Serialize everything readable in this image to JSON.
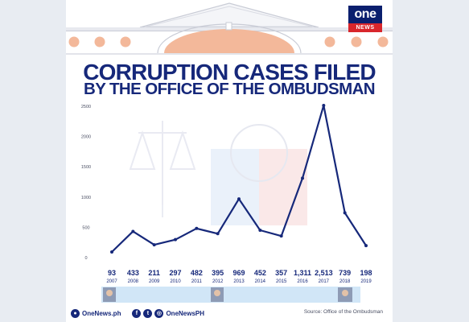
{
  "brand": {
    "logo_top": "one",
    "logo_bottom": "NEWS",
    "navy": "#16287a",
    "red": "#d8262c",
    "accent_peach": "#f3b89a"
  },
  "header": {
    "title": "CORRUPTION CASES FILED",
    "subtitle": "BY THE OFFICE OF THE OMBUDSMAN"
  },
  "chart_data": {
    "type": "line",
    "title": "CORRUPTION CASES FILED BY THE OFFICE OF THE OMBUDSMAN",
    "xlabel": "",
    "ylabel": "",
    "ylim": [
      0,
      2500
    ],
    "yticks": [
      "2500",
      "2000",
      "1500",
      "1000",
      "500",
      "0"
    ],
    "x": [
      "2007",
      "2008",
      "2009",
      "2010",
      "2011",
      "2012",
      "2013",
      "2014",
      "2015",
      "2016",
      "2017",
      "2018",
      "2019"
    ],
    "values": [
      93,
      433,
      211,
      297,
      482,
      395,
      969,
      452,
      357,
      1311,
      2513,
      739,
      198
    ],
    "value_labels": [
      "93",
      "433",
      "211",
      "297",
      "482",
      "395",
      "969",
      "452",
      "357",
      "1,311",
      "2,513",
      "739",
      "198"
    ],
    "grid": false,
    "line_color": "#16287a"
  },
  "footer": {
    "website": "OneNews.ph",
    "social_handle": "OneNewsPH",
    "source": "Source: Office of the Ombudsman",
    "icons": [
      "globe-icon",
      "facebook-icon",
      "twitter-icon",
      "instagram-icon"
    ]
  }
}
